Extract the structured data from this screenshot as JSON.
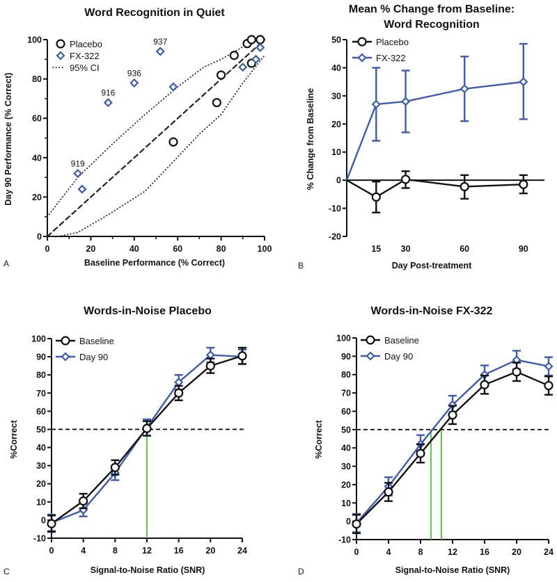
{
  "colors": {
    "placebo": "#111111",
    "fx322": "#3a5bb5",
    "threshold": "#4cc23c"
  },
  "chart_data": [
    {
      "panel": "A",
      "type": "scatter",
      "title": "Word Recognition in Quiet",
      "xlabel": "Baseline Performance (% Correct)",
      "ylabel": "Day 90 Performance (% Correct)",
      "xlim": [
        0,
        100
      ],
      "ylim": [
        0,
        100
      ],
      "xticks": [
        0,
        20,
        40,
        60,
        80,
        100
      ],
      "yticks": [
        0,
        20,
        40,
        60,
        80,
        100
      ],
      "legend": "top-left",
      "series": [
        {
          "name": "Placebo",
          "marker": "circle",
          "x": [
            58,
            78,
            80,
            86,
            92,
            94,
            94,
            98
          ],
          "y": [
            48,
            68,
            82,
            92,
            98,
            100,
            88,
            100
          ]
        },
        {
          "name": "FX-322",
          "marker": "diamond",
          "x": [
            14,
            16,
            28,
            40,
            52,
            58,
            90,
            96,
            98
          ],
          "y": [
            32,
            24,
            68,
            78,
            94,
            76,
            86,
            90,
            96
          ]
        }
      ],
      "annotations": [
        {
          "text": "919",
          "x": 14,
          "y": 32
        },
        {
          "text": "916",
          "x": 28,
          "y": 68
        },
        {
          "text": "936",
          "x": 40,
          "y": 78
        },
        {
          "text": "937",
          "x": 52,
          "y": 94
        }
      ],
      "identity_line": {
        "x": [
          0,
          100
        ],
        "y": [
          0,
          100
        ]
      },
      "ci": {
        "name": "95% CI",
        "upper": {
          "x": [
            0,
            14,
            30,
            45,
            60,
            72,
            80,
            88,
            95
          ],
          "y": [
            10,
            30,
            47,
            62,
            76,
            86,
            90,
            95,
            100
          ]
        },
        "lower": {
          "x": [
            5,
            14,
            28,
            45,
            58,
            70,
            80,
            90,
            100
          ],
          "y": [
            0,
            2,
            11,
            23,
            38,
            52,
            62,
            78,
            92
          ]
        }
      }
    },
    {
      "panel": "B",
      "type": "line",
      "title": [
        "Mean % Change from Baseline:",
        "Word Recognition"
      ],
      "xlabel": "Day Post-treatment",
      "ylabel": "% Change from Baseline",
      "xlim": [
        0,
        100
      ],
      "ylim": [
        -20,
        50
      ],
      "xticks": [
        15,
        30,
        60,
        90
      ],
      "yticks": [
        -20,
        -10,
        0,
        10,
        20,
        30,
        40,
        50
      ],
      "legend": "top-left",
      "x": [
        0,
        15,
        30,
        60,
        90
      ],
      "series": [
        {
          "name": "Placebo",
          "marker": "circle",
          "y": [
            0,
            -6,
            0.3,
            -2.3,
            -1.5
          ],
          "err_low": [
            null,
            -11.5,
            -2.8,
            -6.6,
            -4.7
          ],
          "err_high": [
            null,
            -0.5,
            3.2,
            1.8,
            1.8
          ]
        },
        {
          "name": "FX-322",
          "marker": "diamond",
          "y": [
            0,
            27,
            28,
            32.5,
            35
          ],
          "err_low": [
            null,
            14,
            17,
            21,
            21.7
          ],
          "err_high": [
            null,
            40,
            39,
            44,
            48.5
          ]
        }
      ]
    },
    {
      "panel": "C",
      "type": "line",
      "title": "Words-in-Noise Placebo",
      "xlabel": "Signal-to-Noise Ratio (SNR)",
      "ylabel": "%Correct",
      "xlim": [
        0,
        24
      ],
      "ylim": [
        -10,
        100
      ],
      "xticks": [
        0,
        4,
        8,
        12,
        16,
        20,
        24
      ],
      "yticks": [
        -10,
        0,
        10,
        20,
        30,
        40,
        50,
        60,
        70,
        80,
        90,
        100
      ],
      "legend": "top-left",
      "x": [
        0,
        4,
        8,
        12,
        16,
        20,
        24
      ],
      "series": [
        {
          "name": "Baseline",
          "marker": "circle",
          "y": [
            -2,
            10.5,
            29,
            50.5,
            70,
            85,
            90.5
          ],
          "err": [
            4.5,
            4,
            4,
            4,
            4,
            4,
            4.5
          ]
        },
        {
          "name": "Day 90",
          "marker": "diamond",
          "y": [
            -1.5,
            5.5,
            26,
            51,
            76,
            91,
            90
          ],
          "err": [
            4.5,
            3.5,
            4,
            4.5,
            4,
            4,
            4
          ]
        }
      ],
      "reference_line_y": 50,
      "threshold_x": [
        12
      ]
    },
    {
      "panel": "D",
      "type": "line",
      "title": "Words-in-Noise FX-322",
      "xlabel": "Signal-to-Noise Ratio (SNR)",
      "ylabel": "%Correct",
      "xlim": [
        0,
        24
      ],
      "ylim": [
        -10,
        100
      ],
      "xticks": [
        0,
        4,
        8,
        12,
        16,
        20,
        24
      ],
      "yticks": [
        -10,
        0,
        10,
        20,
        30,
        40,
        50,
        60,
        70,
        80,
        90,
        100
      ],
      "legend": "top-left",
      "x": [
        0,
        4,
        8,
        12,
        16,
        20,
        24
      ],
      "series": [
        {
          "name": "Baseline",
          "marker": "circle",
          "y": [
            -1.5,
            16,
            37,
            58,
            74.5,
            81.5,
            74
          ],
          "err": [
            5,
            5,
            5,
            5,
            5,
            5,
            5
          ]
        },
        {
          "name": "Day 90",
          "marker": "diamond",
          "y": [
            -1,
            19,
            42,
            63.5,
            80,
            88,
            84.5
          ],
          "err": [
            5,
            5,
            5,
            5,
            5,
            5,
            5
          ]
        }
      ],
      "reference_line_y": 50,
      "threshold_x": [
        9.3,
        10.6
      ]
    }
  ]
}
